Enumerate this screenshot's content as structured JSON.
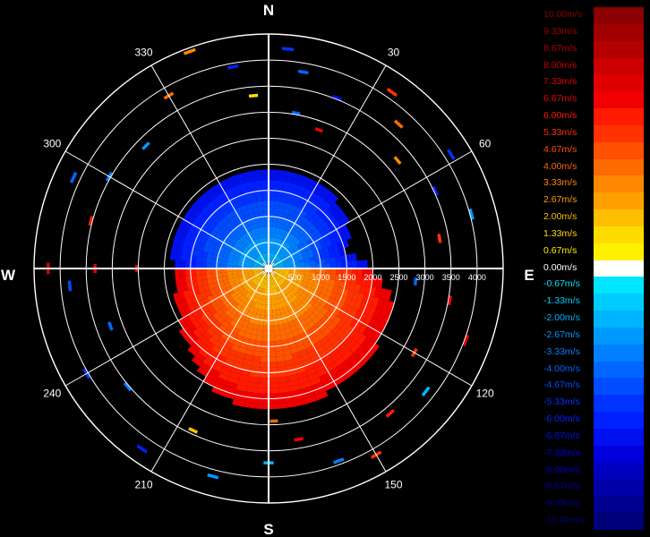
{
  "chart_data": {
    "type": "polar-doppler-velocity",
    "cardinals": {
      "north": "N",
      "south": "S",
      "east": "E",
      "west": "W"
    },
    "azimuth_labels": [
      {
        "deg": 30,
        "text": "30"
      },
      {
        "deg": 60,
        "text": "60"
      },
      {
        "deg": 120,
        "text": "120"
      },
      {
        "deg": 150,
        "text": "150"
      },
      {
        "deg": 210,
        "text": "210"
      },
      {
        "deg": 240,
        "text": "240"
      },
      {
        "deg": 300,
        "text": "300"
      },
      {
        "deg": 330,
        "text": "330"
      }
    ],
    "range_labels": [
      {
        "r": 500,
        "text": "500"
      },
      {
        "r": 1000,
        "text": "1000"
      },
      {
        "r": 1500,
        "text": "1500"
      },
      {
        "r": 2000,
        "text": "2000"
      },
      {
        "r": 2500,
        "text": "2500"
      },
      {
        "r": 3000,
        "text": "3000"
      },
      {
        "r": 3500,
        "text": "3500"
      },
      {
        "r": 4000,
        "text": "4000"
      }
    ],
    "range_max": 4500,
    "range_rings": [
      500,
      1000,
      1500,
      2000,
      2500,
      3000,
      3500,
      4000,
      4500
    ],
    "grid": true,
    "colorbar": {
      "unit": "m/s",
      "entries": [
        {
          "value": "10.00m/s",
          "color": "#8b0000"
        },
        {
          "value": "9.33m/s",
          "color": "#a00000"
        },
        {
          "value": "8.67m/s",
          "color": "#b50000"
        },
        {
          "value": "8.00m/s",
          "color": "#cc0000"
        },
        {
          "value": "7.33m/s",
          "color": "#e00000"
        },
        {
          "value": "6.67m/s",
          "color": "#f00000"
        },
        {
          "value": "6.00m/s",
          "color": "#ff1a00"
        },
        {
          "value": "5.33m/s",
          "color": "#ff3300"
        },
        {
          "value": "4.67m/s",
          "color": "#ff5000"
        },
        {
          "value": "4.00m/s",
          "color": "#ff6a00"
        },
        {
          "value": "3.33m/s",
          "color": "#ff8800"
        },
        {
          "value": "2.67m/s",
          "color": "#ffa000"
        },
        {
          "value": "2.00m/s",
          "color": "#ffbf00"
        },
        {
          "value": "1.33m/s",
          "color": "#ffdc00"
        },
        {
          "value": "0.67m/s",
          "color": "#fff000"
        },
        {
          "value": "0.00m/s",
          "color": "#ffffff"
        },
        {
          "value": "-0.67m/s",
          "color": "#00e5ff"
        },
        {
          "value": "-1.33m/s",
          "color": "#00ccff"
        },
        {
          "value": "-2.00m/s",
          "color": "#00b4ff"
        },
        {
          "value": "-2.67m/s",
          "color": "#0099ff"
        },
        {
          "value": "-3.33m/s",
          "color": "#0080ff"
        },
        {
          "value": "-4.00m/s",
          "color": "#0066ff"
        },
        {
          "value": "-4.67m/s",
          "color": "#004dff"
        },
        {
          "value": "-5.33m/s",
          "color": "#0033ff"
        },
        {
          "value": "-6.00m/s",
          "color": "#0020ff"
        },
        {
          "value": "-6.67m/s",
          "color": "#0010ee"
        },
        {
          "value": "-7.33m/s",
          "color": "#0000dd"
        },
        {
          "value": "-8.00m/s",
          "color": "#0000c0"
        },
        {
          "value": "-8.67m/s",
          "color": "#0000a8"
        },
        {
          "value": "-9.33m/s",
          "color": "#000090"
        },
        {
          "value": "-10.00m/s",
          "color": "#000078"
        }
      ]
    },
    "velocity_field": {
      "description_free": true,
      "dense_region_max_range_by_azimuth": [
        {
          "az": 0,
          "r": 1900
        },
        {
          "az": 30,
          "r": 1900
        },
        {
          "az": 45,
          "r": 1800
        },
        {
          "az": 60,
          "r": 1700
        },
        {
          "az": 75,
          "r": 1500
        },
        {
          "az": 90,
          "r": 2000
        },
        {
          "az": 105,
          "r": 2500
        },
        {
          "az": 120,
          "r": 2500
        },
        {
          "az": 135,
          "r": 2600
        },
        {
          "az": 150,
          "r": 2600
        },
        {
          "az": 165,
          "r": 2700
        },
        {
          "az": 180,
          "r": 2700
        },
        {
          "az": 195,
          "r": 2600
        },
        {
          "az": 210,
          "r": 2400
        },
        {
          "az": 225,
          "r": 2100
        },
        {
          "az": 240,
          "r": 1900
        },
        {
          "az": 255,
          "r": 1800
        },
        {
          "az": 270,
          "r": 1800
        },
        {
          "az": 285,
          "r": 1900
        },
        {
          "az": 300,
          "r": 1900
        },
        {
          "az": 315,
          "r": 1900
        },
        {
          "az": 330,
          "r": 1900
        },
        {
          "az": 345,
          "r": 1900
        },
        {
          "az": 360,
          "r": 1900
        }
      ],
      "sectors": [
        {
          "az_from": 270,
          "az_to": 450,
          "v_near": -2.0,
          "v_far": -6.0
        },
        {
          "az_from": 90,
          "az_to": 270,
          "v_near": 2.0,
          "v_far": 6.0
        }
      ],
      "sparse_echoes": [
        {
          "az": 350,
          "r": 3900,
          "v": -6.0
        },
        {
          "az": 5,
          "r": 4200,
          "v": -5.3
        },
        {
          "az": 10,
          "r": 3800,
          "v": -4.0
        },
        {
          "az": 22,
          "r": 3500,
          "v": -6.7
        },
        {
          "az": 355,
          "r": 3300,
          "v": 1.3
        },
        {
          "az": 340,
          "r": 4400,
          "v": 3.3
        },
        {
          "az": 330,
          "r": 3800,
          "v": 4.0
        },
        {
          "az": 315,
          "r": 3300,
          "v": -2.7
        },
        {
          "az": 300,
          "r": 3500,
          "v": -3.3
        },
        {
          "az": 295,
          "r": 4100,
          "v": -4.0
        },
        {
          "az": 285,
          "r": 3500,
          "v": 6.0
        },
        {
          "az": 270,
          "r": 4200,
          "v": 8.0
        },
        {
          "az": 270,
          "r": 3300,
          "v": 7.3
        },
        {
          "az": 270,
          "r": 2500,
          "v": 6.7
        },
        {
          "az": 265,
          "r": 3800,
          "v": -4.7
        },
        {
          "az": 250,
          "r": 3200,
          "v": -4.0
        },
        {
          "az": 240,
          "r": 4000,
          "v": -5.3
        },
        {
          "az": 230,
          "r": 3500,
          "v": -3.3
        },
        {
          "az": 215,
          "r": 4200,
          "v": -6.0
        },
        {
          "az": 205,
          "r": 3400,
          "v": 2.0
        },
        {
          "az": 195,
          "r": 4100,
          "v": -2.7
        },
        {
          "az": 180,
          "r": 3700,
          "v": -2.0
        },
        {
          "az": 178,
          "r": 2900,
          "v": 4.0
        },
        {
          "az": 170,
          "r": 3300,
          "v": 6.7
        },
        {
          "az": 160,
          "r": 3900,
          "v": -3.3
        },
        {
          "az": 150,
          "r": 4100,
          "v": 5.3
        },
        {
          "az": 140,
          "r": 3600,
          "v": 6.0
        },
        {
          "az": 128,
          "r": 3800,
          "v": -2.0
        },
        {
          "az": 120,
          "r": 3200,
          "v": 5.3
        },
        {
          "az": 110,
          "r": 4000,
          "v": 7.3
        },
        {
          "az": 100,
          "r": 3500,
          "v": 6.7
        },
        {
          "az": 95,
          "r": 2800,
          "v": -4.0
        },
        {
          "az": 80,
          "r": 3300,
          "v": 5.3
        },
        {
          "az": 75,
          "r": 4000,
          "v": -2.7
        },
        {
          "az": 65,
          "r": 3500,
          "v": -6.0
        },
        {
          "az": 58,
          "r": 4100,
          "v": -5.3
        },
        {
          "az": 50,
          "r": 3200,
          "v": 3.3
        },
        {
          "az": 42,
          "r": 3700,
          "v": 4.0
        },
        {
          "az": 35,
          "r": 4100,
          "v": 5.3
        },
        {
          "az": 20,
          "r": 2800,
          "v": 6.7
        },
        {
          "az": 10,
          "r": 3000,
          "v": -4.0
        }
      ]
    }
  }
}
